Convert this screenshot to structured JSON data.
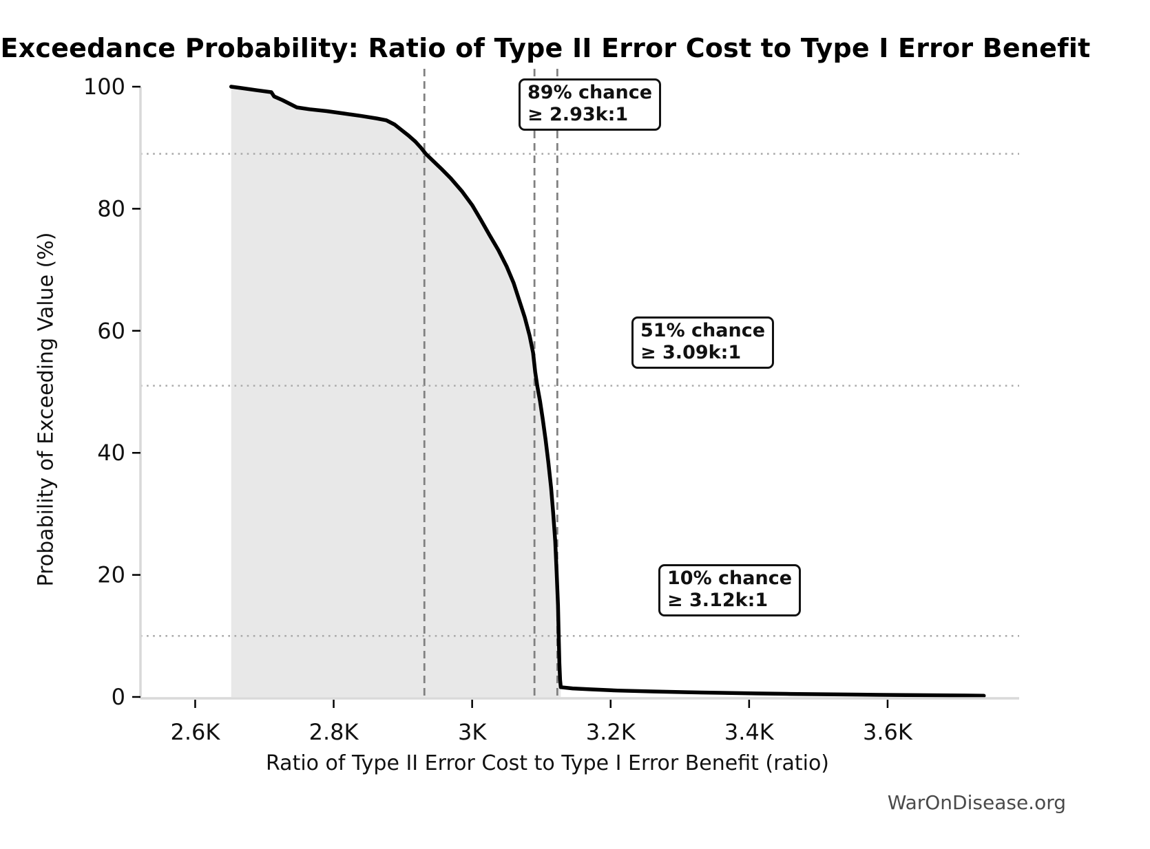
{
  "chart_data": {
    "type": "area",
    "title": "Exceedance Probability: Ratio of Type II Error Cost to Type I Error Benefit",
    "xlabel": "Ratio of Type II Error Cost to Type I Error Benefit (ratio)",
    "ylabel": "Probability of Exceeding Value (%)",
    "watermark": "WarOnDisease.org",
    "xlim": [
      2521,
      3790
    ],
    "ylim": [
      0,
      103
    ],
    "grid": "dotted horizontal reference lines at annotated probabilities only",
    "legend_position": "none",
    "x_ticks": [
      {
        "value": 2600,
        "label": "2.6K"
      },
      {
        "value": 2800,
        "label": "2.8K"
      },
      {
        "value": 3000,
        "label": "3K"
      },
      {
        "value": 3200,
        "label": "3.2K"
      },
      {
        "value": 3400,
        "label": "3.4K"
      },
      {
        "value": 3600,
        "label": "3.6K"
      }
    ],
    "y_ticks": [
      {
        "value": 0,
        "label": "0"
      },
      {
        "value": 20,
        "label": "20"
      },
      {
        "value": 40,
        "label": "40"
      },
      {
        "value": 60,
        "label": "60"
      },
      {
        "value": 80,
        "label": "80"
      },
      {
        "value": 100,
        "label": "100"
      }
    ],
    "series": [
      {
        "name": "exceedance-probability-curve",
        "points": [
          [
            2652,
            100
          ],
          [
            2665,
            99.8
          ],
          [
            2690,
            99.4
          ],
          [
            2710,
            99.1
          ],
          [
            2714,
            98.4
          ],
          [
            2726,
            97.8
          ],
          [
            2740,
            97.0
          ],
          [
            2747,
            96.6
          ],
          [
            2765,
            96.3
          ],
          [
            2790,
            96.0
          ],
          [
            2815,
            95.6
          ],
          [
            2840,
            95.2
          ],
          [
            2862,
            94.8
          ],
          [
            2876,
            94.5
          ],
          [
            2888,
            93.8
          ],
          [
            2898,
            92.9
          ],
          [
            2908,
            92.0
          ],
          [
            2918,
            91.0
          ],
          [
            2926,
            90.0
          ],
          [
            2933,
            89.0
          ],
          [
            2944,
            87.8
          ],
          [
            2955,
            86.6
          ],
          [
            2969,
            85.0
          ],
          [
            2985,
            82.9
          ],
          [
            3000,
            80.6
          ],
          [
            3012,
            78.3
          ],
          [
            3025,
            75.7
          ],
          [
            3038,
            73.2
          ],
          [
            3050,
            70.5
          ],
          [
            3060,
            67.8
          ],
          [
            3068,
            65.0
          ],
          [
            3076,
            62.2
          ],
          [
            3083,
            59.2
          ],
          [
            3088,
            56.4
          ],
          [
            3091,
            53.3
          ],
          [
            3094,
            51.0
          ],
          [
            3098,
            48.5
          ],
          [
            3102,
            45.5
          ],
          [
            3106,
            42.2
          ],
          [
            3110,
            38.5
          ],
          [
            3114,
            34.3
          ],
          [
            3117,
            30.2
          ],
          [
            3120,
            25.5
          ],
          [
            3122,
            20.5
          ],
          [
            3124,
            15.0
          ],
          [
            3125,
            10.0
          ],
          [
            3126,
            5.5
          ],
          [
            3127,
            2.8
          ],
          [
            3128,
            1.6
          ],
          [
            3145,
            1.4
          ],
          [
            3170,
            1.25
          ],
          [
            3210,
            1.05
          ],
          [
            3260,
            0.9
          ],
          [
            3310,
            0.78
          ],
          [
            3360,
            0.67
          ],
          [
            3410,
            0.58
          ],
          [
            3460,
            0.5
          ],
          [
            3510,
            0.44
          ],
          [
            3560,
            0.38
          ],
          [
            3610,
            0.33
          ],
          [
            3660,
            0.28
          ],
          [
            3710,
            0.24
          ],
          [
            3739,
            0.2
          ]
        ]
      }
    ],
    "fill_region": {
      "x_start": 2652,
      "x_end": 3128
    },
    "annotations": [
      {
        "line1": "89% chance",
        "line2": "≥ 2.93k:1",
        "prob": 89,
        "ratio": 2931
      },
      {
        "line1": "51% chance",
        "line2": "≥ 3.09k:1",
        "prob": 51,
        "ratio": 3090
      },
      {
        "line1": "10% chance",
        "line2": "≥ 3.12k:1",
        "prob": 10,
        "ratio": 3123
      }
    ],
    "colors": {
      "curve": "#000000",
      "fill": "#e8e8e8",
      "dashed_vline": "#808080",
      "dotted_hline": "#aaaaaa",
      "spine": "#d9d9d9",
      "tick": "#000000",
      "watermark": "#4a4a4a",
      "annotation_border": "#111111",
      "background": "#ffffff"
    }
  }
}
